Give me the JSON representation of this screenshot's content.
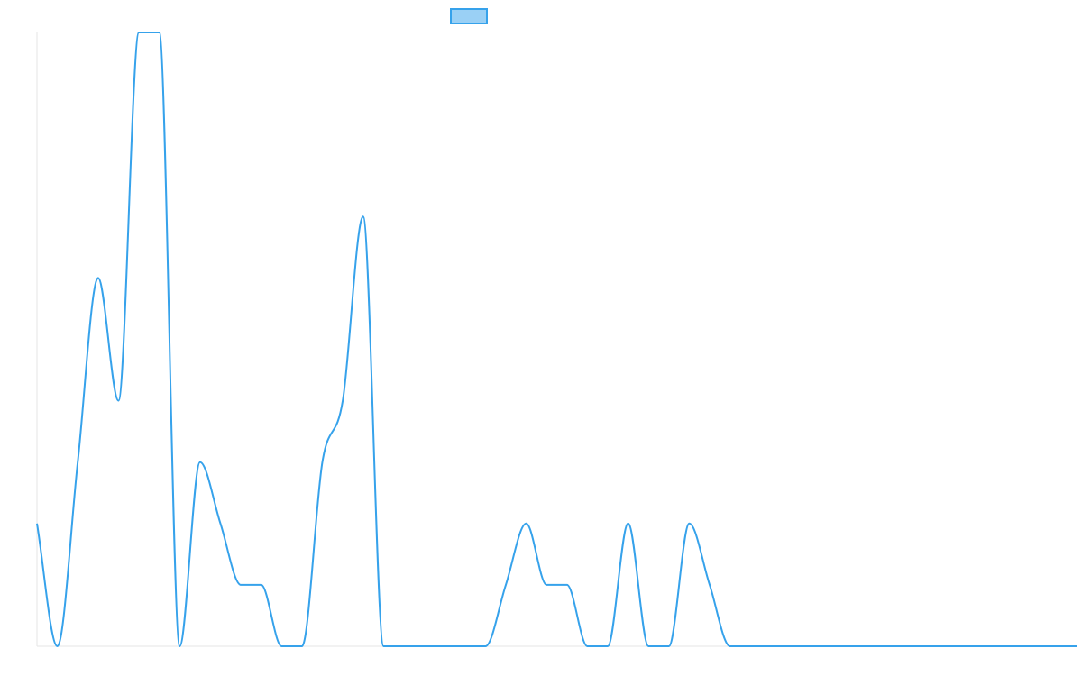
{
  "chart_data": {
    "type": "line",
    "title": "",
    "xlabel": "",
    "ylabel": "",
    "legend": {
      "position": "top-center"
    },
    "grid": false,
    "ylim": [
      0,
      10
    ],
    "x": [
      0,
      1,
      2,
      3,
      4,
      5,
      6,
      7,
      8,
      9,
      10,
      11,
      12,
      13,
      14,
      15,
      16,
      17,
      18,
      19,
      20,
      21,
      22,
      23,
      24,
      25,
      26,
      27,
      28,
      29,
      30,
      31,
      32,
      33,
      34,
      35,
      36,
      37,
      38,
      39,
      40,
      41,
      42,
      43,
      44,
      45,
      46,
      47,
      48,
      49,
      50,
      51
    ],
    "series": [
      {
        "color": "#36a2eb",
        "fill": "#9ad0f5",
        "values": [
          2,
          0,
          3,
          6,
          4,
          10,
          10,
          0,
          3,
          2,
          1,
          1,
          0,
          0,
          3,
          4,
          7,
          0,
          0,
          0,
          0,
          0,
          0,
          1,
          2,
          1,
          1,
          0,
          0,
          2,
          0,
          0,
          2,
          1,
          0,
          0,
          0,
          0,
          0,
          0,
          0,
          0,
          0,
          0,
          0,
          0,
          0,
          0,
          0,
          0,
          0,
          0
        ]
      }
    ]
  }
}
